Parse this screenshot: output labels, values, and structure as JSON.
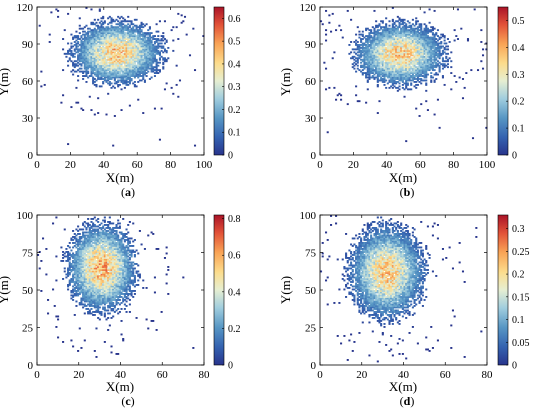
{
  "chart_data": [
    {
      "type": "heatmap",
      "caption": "(a)",
      "xlabel": "X(m)",
      "ylabel": "Y(m)",
      "xlim": [
        0,
        100
      ],
      "ylim": [
        0,
        120
      ],
      "xticks": [
        "0",
        "20",
        "40",
        "60",
        "80",
        "100"
      ],
      "yticks": [
        "0",
        "30",
        "60",
        "90",
        "120"
      ],
      "colorbar": {
        "min": 0,
        "max": 0.65,
        "ticks": [
          "0",
          "0.1",
          "0.2",
          "0.3",
          "0.4",
          "0.5",
          "0.6"
        ]
      },
      "cluster": {
        "center_x": 48,
        "center_y": 83,
        "spread_x": 15,
        "spread_y": 14,
        "peak": 0.6
      },
      "grid": false
    },
    {
      "type": "heatmap",
      "caption": "(b)",
      "xlabel": "X(m)",
      "ylabel": "Y(m)",
      "xlim": [
        0,
        100
      ],
      "ylim": [
        0,
        120
      ],
      "xticks": [
        "0",
        "20",
        "40",
        "60",
        "80",
        "100"
      ],
      "yticks": [
        "0",
        "30",
        "60",
        "90",
        "120"
      ],
      "colorbar": {
        "min": 0,
        "max": 0.55,
        "ticks": [
          "0",
          "0.1",
          "0.2",
          "0.3",
          "0.4",
          "0.5"
        ]
      },
      "cluster": {
        "center_x": 48,
        "center_y": 82,
        "spread_x": 15,
        "spread_y": 14,
        "peak": 0.5
      },
      "grid": false
    },
    {
      "type": "heatmap",
      "caption": "(c)",
      "xlabel": "X(m)",
      "ylabel": "Y(m)",
      "xlim": [
        0,
        80
      ],
      "ylim": [
        0,
        100
      ],
      "xticks": [
        "0",
        "20",
        "40",
        "60",
        "80"
      ],
      "yticks": [
        "0",
        "25",
        "50",
        "75",
        "100"
      ],
      "colorbar": {
        "min": 0,
        "max": 0.82,
        "ticks": [
          "0",
          "0.2",
          "0.4",
          "0.6",
          "0.8"
        ]
      },
      "cluster": {
        "center_x": 31,
        "center_y": 65,
        "spread_x": 9,
        "spread_y": 16,
        "peak": 0.8
      },
      "grid": false
    },
    {
      "type": "heatmap",
      "caption": "(d)",
      "xlabel": "X(m)",
      "ylabel": "Y(m)",
      "xlim": [
        0,
        80
      ],
      "ylim": [
        0,
        100
      ],
      "xticks": [
        "0",
        "20",
        "40",
        "60",
        "80"
      ],
      "yticks": [
        "0",
        "25",
        "50",
        "75",
        "100"
      ],
      "colorbar": {
        "min": 0,
        "max": 0.33,
        "ticks": [
          "0",
          "0.05",
          "0.1",
          "0.15",
          "0.2",
          "0.25",
          "0.3"
        ]
      },
      "cluster": {
        "center_x": 32,
        "center_y": 62,
        "spread_x": 10,
        "spread_y": 17,
        "peak": 0.3
      },
      "grid": false
    }
  ]
}
